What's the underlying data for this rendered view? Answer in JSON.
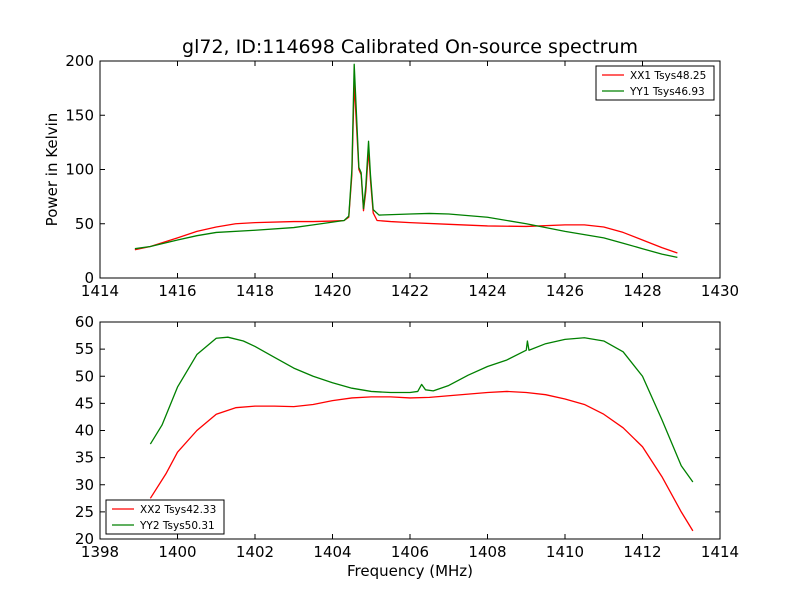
{
  "chart_data": [
    {
      "type": "line",
      "title": "gl72, ID:114698 Calibrated On-source spectrum",
      "xlabel": "",
      "ylabel": "Power in Kelvin",
      "xlim": [
        1414,
        1430
      ],
      "ylim": [
        0,
        200
      ],
      "xticks": [
        "1414",
        "1416",
        "1418",
        "1420",
        "1422",
        "1424",
        "1426",
        "1428",
        "1430"
      ],
      "yticks": [
        "0",
        "50",
        "100",
        "150",
        "200"
      ],
      "legend_position": "top-right",
      "series": [
        {
          "name": "XX1 Tsys48.25",
          "color": "#ff0000",
          "points": [
            [
              1414.9,
              26
            ],
            [
              1415.3,
              29
            ],
            [
              1416,
              37
            ],
            [
              1416.5,
              43
            ],
            [
              1417,
              47
            ],
            [
              1417.5,
              50
            ],
            [
              1418,
              51
            ],
            [
              1419,
              52
            ],
            [
              1419.5,
              52
            ],
            [
              1420,
              52.5
            ],
            [
              1420.3,
              53
            ],
            [
              1420.42,
              56
            ],
            [
              1420.5,
              95
            ],
            [
              1420.56,
              180
            ],
            [
              1420.62,
              140
            ],
            [
              1420.68,
              100
            ],
            [
              1420.74,
              95
            ],
            [
              1420.8,
              62
            ],
            [
              1420.86,
              80
            ],
            [
              1420.93,
              118
            ],
            [
              1420.98,
              90
            ],
            [
              1421.05,
              60
            ],
            [
              1421.15,
              53
            ],
            [
              1421.5,
              52
            ],
            [
              1422,
              51
            ],
            [
              1423,
              49.5
            ],
            [
              1424,
              48
            ],
            [
              1425,
              47.5
            ],
            [
              1426,
              49
            ],
            [
              1426.5,
              49
            ],
            [
              1427,
              47
            ],
            [
              1427.5,
              42
            ],
            [
              1428,
              35
            ],
            [
              1428.5,
              28
            ],
            [
              1428.9,
              23
            ]
          ]
        },
        {
          "name": "YY1 Tsys46.93",
          "color": "#008000",
          "points": [
            [
              1414.9,
              27
            ],
            [
              1415.3,
              29
            ],
            [
              1416,
              35
            ],
            [
              1416.5,
              39
            ],
            [
              1417,
              42
            ],
            [
              1418,
              44
            ],
            [
              1419,
              46.5
            ],
            [
              1419.5,
              49
            ],
            [
              1420,
              51.5
            ],
            [
              1420.3,
              53
            ],
            [
              1420.42,
              57
            ],
            [
              1420.5,
              100
            ],
            [
              1420.56,
              197
            ],
            [
              1420.62,
              150
            ],
            [
              1420.68,
              102
            ],
            [
              1420.74,
              97
            ],
            [
              1420.8,
              64
            ],
            [
              1420.86,
              85
            ],
            [
              1420.93,
              126
            ],
            [
              1420.98,
              95
            ],
            [
              1421.05,
              63
            ],
            [
              1421.2,
              58
            ],
            [
              1422,
              59
            ],
            [
              1422.5,
              59.5
            ],
            [
              1423,
              59
            ],
            [
              1424,
              56
            ],
            [
              1425,
              50
            ],
            [
              1426,
              43
            ],
            [
              1426.5,
              40
            ],
            [
              1427,
              37
            ],
            [
              1427.5,
              32
            ],
            [
              1428,
              27
            ],
            [
              1428.5,
              22
            ],
            [
              1428.9,
              19
            ]
          ]
        }
      ]
    },
    {
      "type": "line",
      "title": "",
      "xlabel": "Frequency (MHz)",
      "ylabel": "",
      "xlim": [
        1398,
        1414
      ],
      "ylim": [
        20,
        60
      ],
      "xticks": [
        "1398",
        "1400",
        "1402",
        "1404",
        "1406",
        "1408",
        "1410",
        "1412",
        "1414"
      ],
      "yticks": [
        "20",
        "25",
        "30",
        "35",
        "40",
        "45",
        "50",
        "55",
        "60"
      ],
      "legend_position": "bottom-left",
      "series": [
        {
          "name": "XX2 Tsys42.33",
          "color": "#ff0000",
          "points": [
            [
              1399.3,
              27.5
            ],
            [
              1399.7,
              32
            ],
            [
              1400,
              36
            ],
            [
              1400.5,
              40
            ],
            [
              1401,
              43
            ],
            [
              1401.5,
              44.2
            ],
            [
              1402,
              44.5
            ],
            [
              1402.5,
              44.5
            ],
            [
              1403,
              44.4
            ],
            [
              1403.5,
              44.8
            ],
            [
              1404,
              45.5
            ],
            [
              1404.5,
              46
            ],
            [
              1405,
              46.2
            ],
            [
              1405.5,
              46.2
            ],
            [
              1406,
              46
            ],
            [
              1406.5,
              46.1
            ],
            [
              1407,
              46.4
            ],
            [
              1407.5,
              46.7
            ],
            [
              1408,
              47
            ],
            [
              1408.5,
              47.2
            ],
            [
              1409,
              47
            ],
            [
              1409.5,
              46.6
            ],
            [
              1410,
              45.8
            ],
            [
              1410.5,
              44.8
            ],
            [
              1411,
              43
            ],
            [
              1411.5,
              40.5
            ],
            [
              1412,
              37
            ],
            [
              1412.5,
              31.5
            ],
            [
              1413,
              25
            ],
            [
              1413.3,
              21.5
            ]
          ]
        },
        {
          "name": "YY2 Tsys50.31",
          "color": "#008000",
          "points": [
            [
              1399.3,
              37.5
            ],
            [
              1399.6,
              41
            ],
            [
              1400,
              48
            ],
            [
              1400.5,
              54
            ],
            [
              1401,
              57
            ],
            [
              1401.3,
              57.2
            ],
            [
              1401.7,
              56.5
            ],
            [
              1402,
              55.5
            ],
            [
              1402.5,
              53.5
            ],
            [
              1403,
              51.5
            ],
            [
              1403.5,
              50
            ],
            [
              1404,
              48.8
            ],
            [
              1404.5,
              47.8
            ],
            [
              1405,
              47.2
            ],
            [
              1405.5,
              47
            ],
            [
              1406,
              47
            ],
            [
              1406.2,
              47.2
            ],
            [
              1406.3,
              48.5
            ],
            [
              1406.4,
              47.5
            ],
            [
              1406.6,
              47.3
            ],
            [
              1407,
              48.3
            ],
            [
              1407.5,
              50.2
            ],
            [
              1408,
              51.8
            ],
            [
              1408.5,
              53
            ],
            [
              1409,
              54.8
            ],
            [
              1409.03,
              56.5
            ],
            [
              1409.07,
              54.8
            ],
            [
              1409.5,
              56
            ],
            [
              1410,
              56.8
            ],
            [
              1410.5,
              57.1
            ],
            [
              1411,
              56.5
            ],
            [
              1411.5,
              54.5
            ],
            [
              1412,
              50
            ],
            [
              1412.5,
              42
            ],
            [
              1413,
              33.5
            ],
            [
              1413.3,
              30.5
            ]
          ]
        }
      ]
    }
  ]
}
